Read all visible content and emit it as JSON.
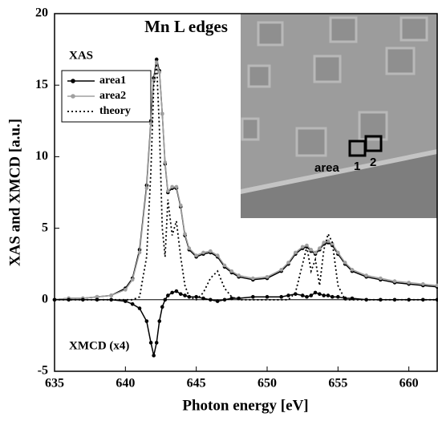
{
  "chart_data": {
    "type": "line",
    "title": "Mn L edges",
    "x_label": "Photon energy [eV]",
    "y_label": "XAS and XMCD [a.u.]",
    "legend_title": "XAS",
    "legend": "upper left",
    "x": [
      635,
      636,
      637,
      638,
      639,
      640,
      640.5,
      641,
      641.5,
      641.8,
      642,
      642.2,
      642.4,
      642.6,
      642.8,
      643,
      643.3,
      643.6,
      643.9,
      644.2,
      644.5,
      645,
      645.5,
      646,
      646.5,
      647,
      647.5,
      648,
      649,
      650,
      651,
      651.5,
      652,
      652.5,
      652.8,
      653.1,
      653.4,
      653.7,
      654,
      654.3,
      654.6,
      655,
      655.5,
      656,
      657,
      658,
      659,
      660,
      661,
      662
    ],
    "series": [
      {
        "name": "area1",
        "color": "#000000",
        "marker": "circle",
        "dash": "solid",
        "in_legend": true,
        "values": [
          0,
          0.1,
          0.1,
          0.2,
          0.3,
          0.8,
          1.5,
          3.5,
          8,
          12.5,
          15.5,
          16.8,
          16,
          13,
          9.5,
          7.5,
          7.8,
          7.8,
          6.5,
          4.5,
          3.5,
          3,
          3.2,
          3.3,
          3,
          2.3,
          1.9,
          1.6,
          1.4,
          1.5,
          2,
          2.5,
          3.2,
          3.6,
          3.7,
          3.4,
          3.2,
          3.5,
          3.9,
          4,
          3.8,
          3.2,
          2.5,
          2,
          1.6,
          1.4,
          1.2,
          1.1,
          1,
          0.9
        ]
      },
      {
        "name": "area2",
        "color": "#a0a0a0",
        "marker": "circle",
        "dash": "solid",
        "in_legend": true,
        "values": [
          0,
          0.1,
          0.1,
          0.2,
          0.3,
          0.7,
          1.4,
          3.3,
          7.8,
          12.3,
          15.3,
          16.6,
          15.9,
          13,
          9.6,
          7.6,
          7.9,
          7.9,
          6.6,
          4.6,
          3.6,
          3.1,
          3.3,
          3.4,
          3.1,
          2.4,
          2,
          1.7,
          1.5,
          1.6,
          2.1,
          2.6,
          3.3,
          3.7,
          3.8,
          3.5,
          3.3,
          3.6,
          4,
          4.1,
          3.9,
          3.3,
          2.6,
          2.1,
          1.7,
          1.5,
          1.3,
          1.2,
          1.1,
          1
        ]
      },
      {
        "name": "theory",
        "color": "#000000",
        "marker": "none",
        "dash": "dotted",
        "in_legend": true,
        "values": [
          0,
          0,
          0,
          0,
          0,
          0,
          0,
          0.2,
          3,
          9,
          15,
          16.5,
          12,
          5,
          3,
          7,
          4.5,
          5.5,
          3,
          1,
          0.2,
          0,
          0.5,
          1.5,
          2,
          0.8,
          0.2,
          0,
          0,
          0,
          0,
          0,
          0.5,
          2.5,
          3.7,
          2,
          2.8,
          1,
          3.5,
          4.6,
          4,
          1,
          0,
          0,
          0,
          0,
          0,
          0,
          0,
          0
        ]
      },
      {
        "name": "XMCD (x4)",
        "color": "#000000",
        "marker": "circle",
        "dash": "solid",
        "in_legend": false,
        "values": [
          0,
          0,
          0,
          0,
          0,
          -0.1,
          -0.3,
          -0.6,
          -1.5,
          -3,
          -3.9,
          -3,
          -1.5,
          -0.5,
          0,
          0.3,
          0.5,
          0.6,
          0.4,
          0.3,
          0.2,
          0.2,
          0.1,
          0,
          -0.1,
          0,
          0.1,
          0.1,
          0.2,
          0.2,
          0.2,
          0.3,
          0.4,
          0.3,
          0.2,
          0.3,
          0.5,
          0.4,
          0.3,
          0.3,
          0.2,
          0.2,
          0.1,
          0.1,
          0,
          0,
          0,
          0,
          0,
          0
        ]
      }
    ],
    "xlim": [
      635,
      662
    ],
    "xticks": [
      635,
      640,
      645,
      650,
      655,
      660
    ],
    "ylim": [
      -5,
      20
    ],
    "yticks": [
      -5,
      0,
      5,
      10,
      15,
      20
    ],
    "grid": false
  },
  "inset": {
    "label": "area",
    "box1": "1",
    "box2": "2"
  }
}
